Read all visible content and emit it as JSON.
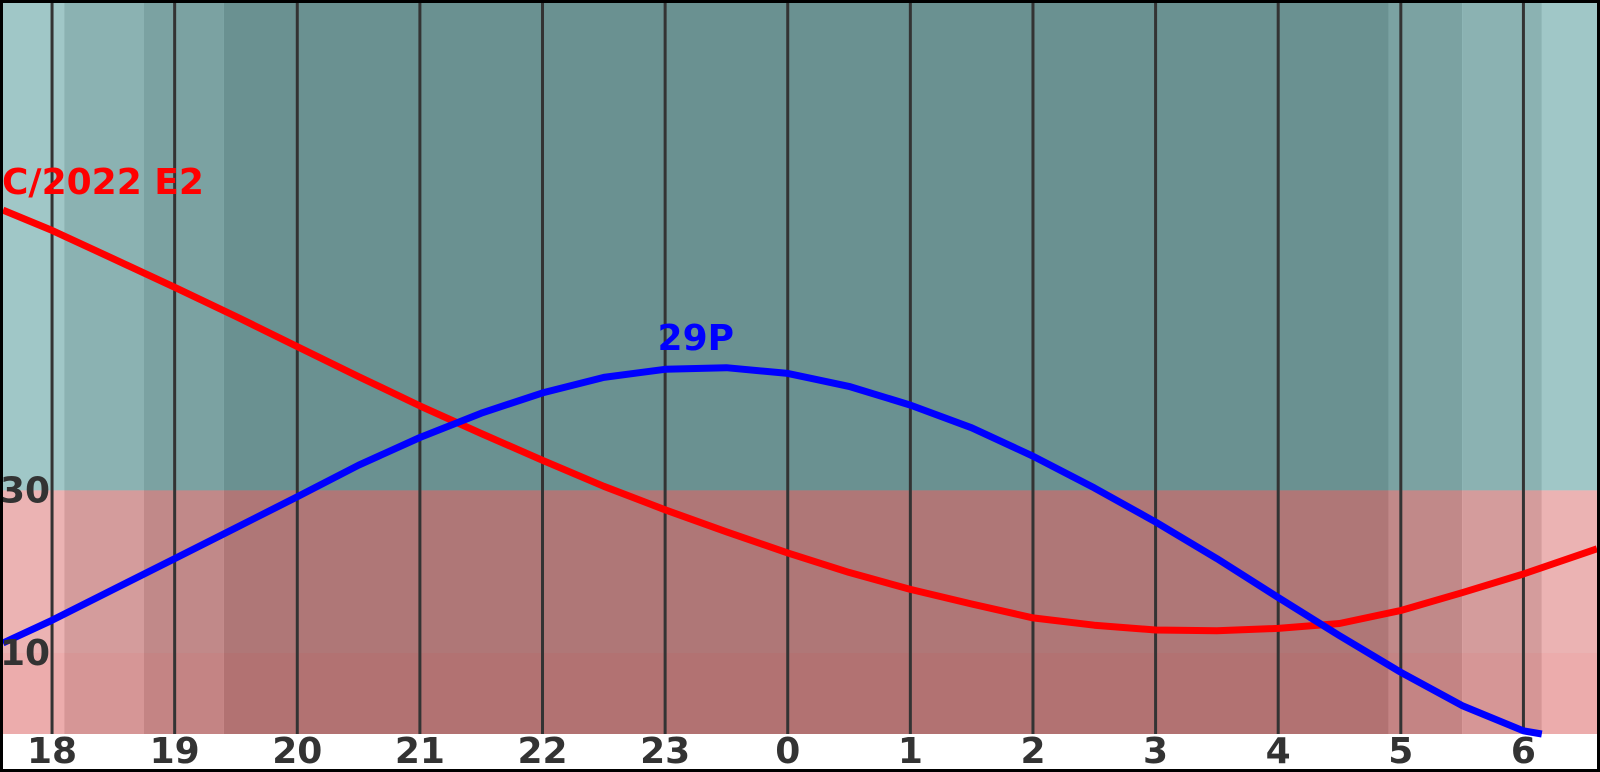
{
  "chart_data": {
    "type": "line",
    "title": "",
    "xlabel": "",
    "ylabel": "",
    "x_unit": "hour",
    "x_tick_labels": [
      "18",
      "19",
      "20",
      "21",
      "22",
      "23",
      "0",
      "1",
      "2",
      "3",
      "4",
      "5",
      "6"
    ],
    "x_tick_hours": [
      18,
      19,
      20,
      21,
      22,
      23,
      24,
      25,
      26,
      27,
      28,
      29,
      30
    ],
    "xlim": [
      17.6,
      30.6
    ],
    "ylim": [
      0,
      90
    ],
    "y_tick_labels": [
      "10",
      "30"
    ],
    "y_ticks": [
      10,
      30
    ],
    "grid": "vertical",
    "background_bands": {
      "columns": [
        {
          "from": 17.6,
          "to": 18.1,
          "level": "twilight-1"
        },
        {
          "from": 18.1,
          "to": 18.75,
          "level": "twilight-2"
        },
        {
          "from": 18.75,
          "to": 19.4,
          "level": "twilight-3"
        },
        {
          "from": 19.4,
          "to": 28.9,
          "level": "night"
        },
        {
          "from": 28.9,
          "to": 29.5,
          "level": "twilight-3"
        },
        {
          "from": 29.5,
          "to": 30.15,
          "level": "twilight-2"
        },
        {
          "from": 30.15,
          "to": 30.6,
          "level": "twilight-1"
        }
      ],
      "rows": [
        {
          "from": 0,
          "to": 10,
          "tint": "#ff0000"
        },
        {
          "from": 10,
          "to": 30,
          "tint": "#ff0000"
        },
        {
          "from": 30,
          "to": 90,
          "tint": "#008080"
        }
      ],
      "day_color": "#ffffff",
      "night_color": "#999999"
    },
    "series": [
      {
        "name": "C/2022 E2",
        "color": "#ff0000",
        "x": [
          17.6,
          18,
          18.5,
          19,
          19.5,
          20,
          20.5,
          21,
          21.5,
          22,
          22.5,
          23,
          23.5,
          24,
          24.5,
          25,
          25.5,
          26,
          26.5,
          27,
          27.5,
          28,
          28.5,
          29,
          29.5,
          30,
          30.6
        ],
        "y": [
          64.5,
          62,
          58.5,
          55,
          51.4,
          47.7,
          44,
          40.4,
          37,
          33.7,
          30.5,
          27.6,
          24.9,
          22.3,
          19.9,
          17.8,
          16,
          14.3,
          13.4,
          12.8,
          12.7,
          13,
          13.6,
          15.2,
          17.4,
          19.7,
          22.8
        ]
      },
      {
        "name": "29P",
        "color": "#0000ff",
        "x": [
          17.6,
          18,
          18.5,
          19,
          19.5,
          20,
          20.5,
          21,
          21.5,
          22,
          22.5,
          23,
          23.5,
          24,
          24.5,
          25,
          25.5,
          26,
          26.5,
          27,
          27.5,
          28,
          28.5,
          29,
          29.5,
          30,
          30.15
        ],
        "y": [
          11.2,
          14,
          17.8,
          21.6,
          25.4,
          29.2,
          33.1,
          36.5,
          39.5,
          42,
          43.9,
          44.9,
          45.1,
          44.4,
          42.8,
          40.5,
          37.7,
          34.2,
          30.3,
          26.1,
          21.6,
          16.8,
          12.1,
          7.6,
          3.5,
          0.4,
          0
        ]
      }
    ],
    "annotations": [
      {
        "text": "C/2022 E2",
        "series": "C/2022 E2",
        "x": 18.0,
        "y": 66.5
      },
      {
        "text": "29P",
        "series": "29P",
        "x": 23.25,
        "y": 47.3
      }
    ]
  }
}
